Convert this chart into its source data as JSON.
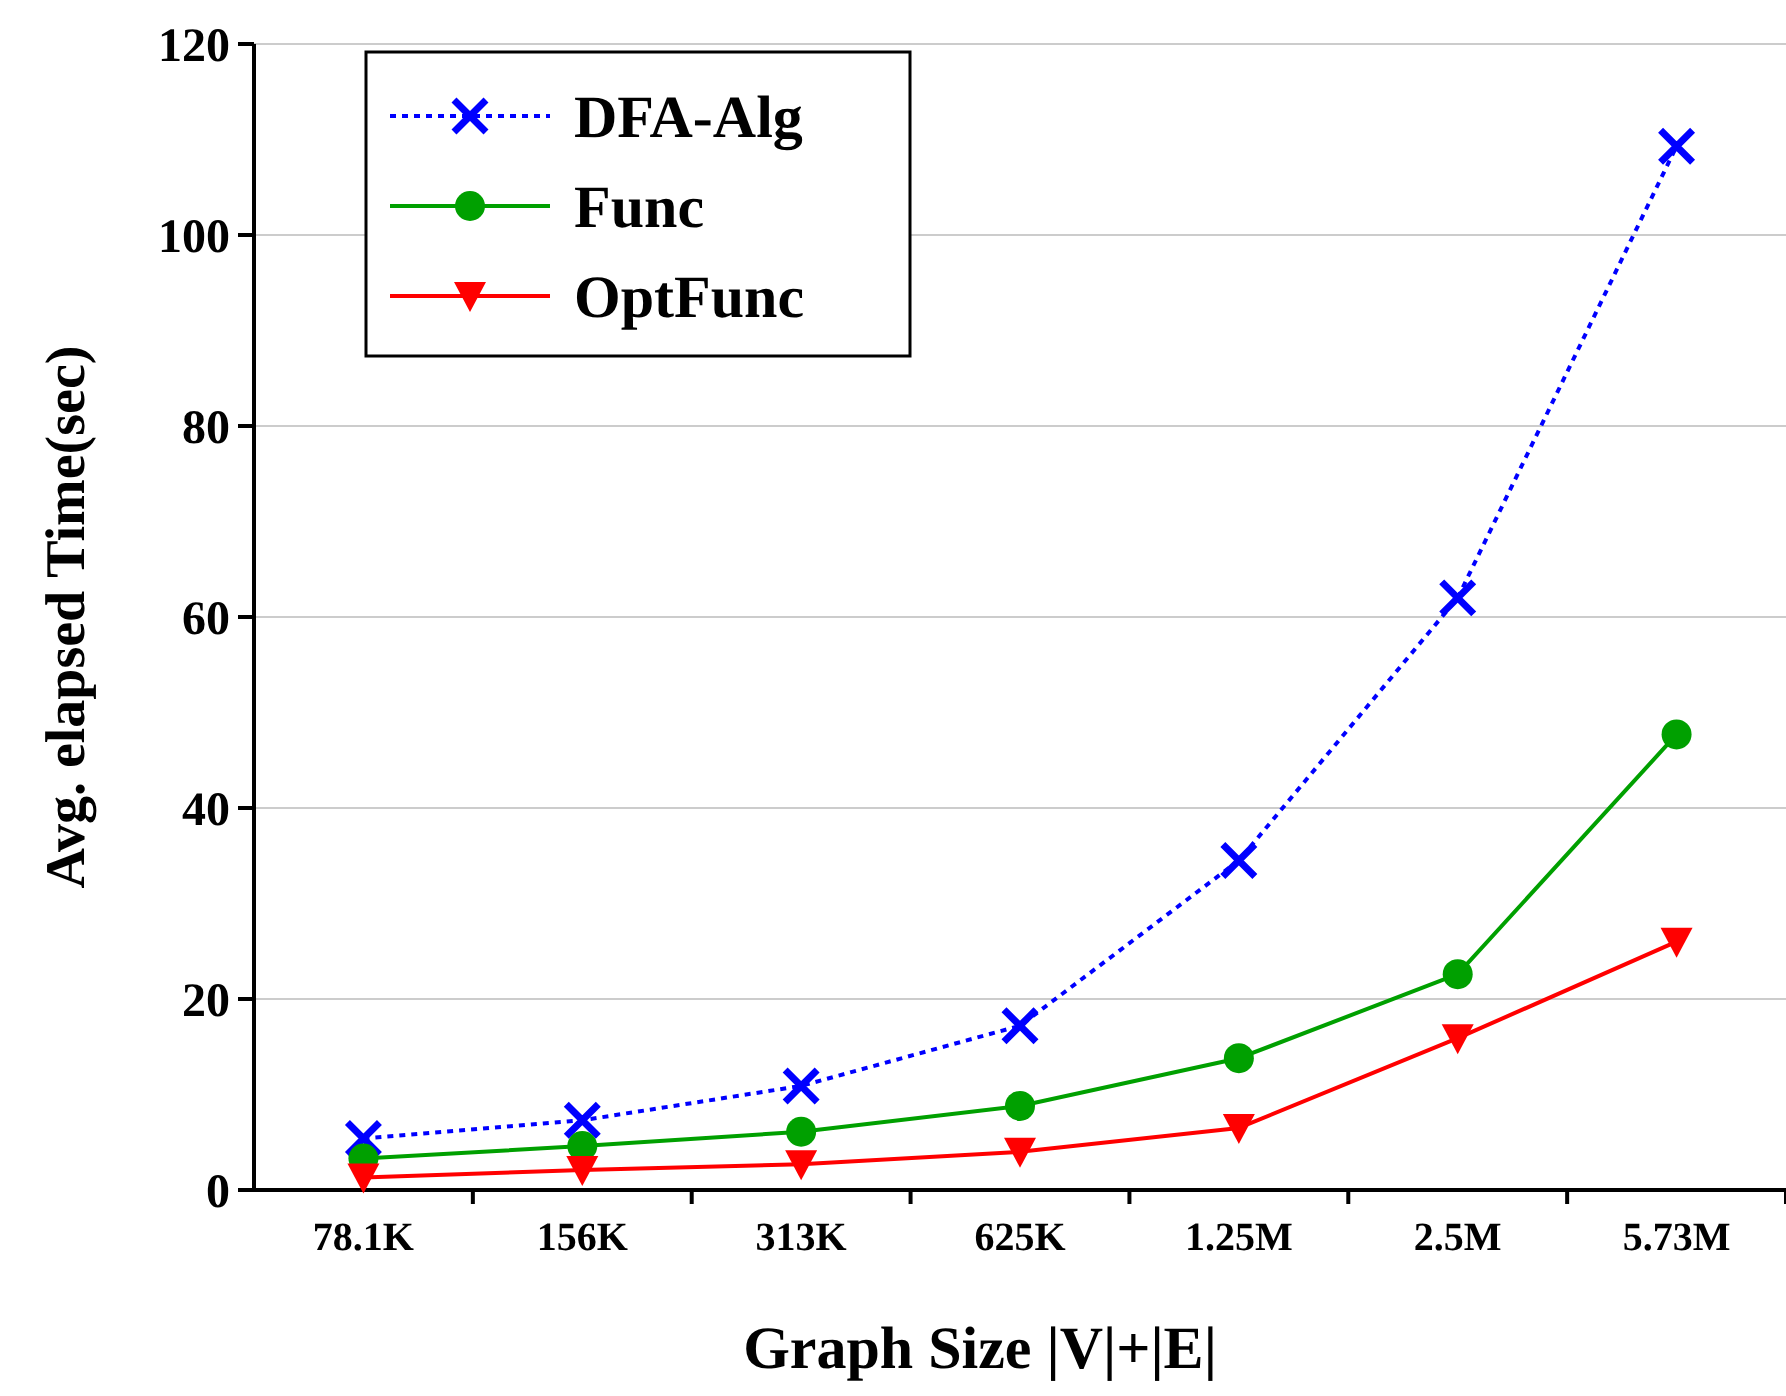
{
  "chart_data": {
    "type": "line",
    "xlabel": "Graph Size |V|+|E|",
    "ylabel": "Avg. elapsed Time(sec)",
    "categories": [
      "78.1K",
      "156K",
      "313K",
      "625K",
      "1.25M",
      "2.5M",
      "5.73M"
    ],
    "ylim": [
      0,
      120
    ],
    "yticks": [
      0,
      20,
      40,
      60,
      80,
      100,
      120
    ],
    "grid": "y",
    "legend": "top left",
    "series": [
      {
        "name": "DFA-Alg",
        "color": "#0000ff",
        "marker": "cross",
        "line_style": "dotted",
        "values": [
          5.4,
          7.3,
          10.9,
          17.2,
          34.5,
          62,
          109.3
        ]
      },
      {
        "name": "Func",
        "color": "#00a000",
        "marker": "circle",
        "line_style": "solid",
        "values": [
          3.3,
          4.6,
          6.1,
          8.8,
          13.8,
          22.6,
          47.7
        ]
      },
      {
        "name": "OptFunc",
        "color": "#ff0000",
        "marker": "triangle",
        "line_style": "solid",
        "values": [
          1.3,
          2.1,
          2.7,
          4.0,
          6.5,
          15.9,
          26
        ]
      }
    ]
  }
}
